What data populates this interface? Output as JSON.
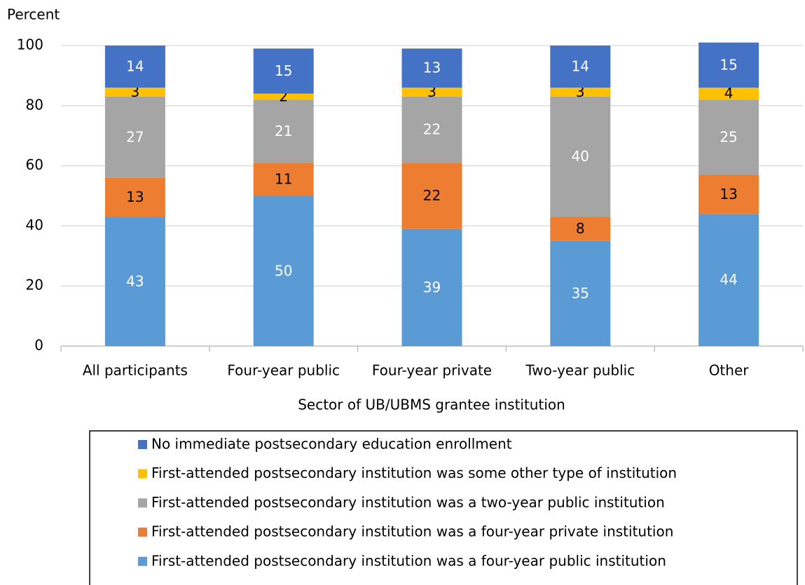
{
  "chart_data": {
    "type": "stacked-bar",
    "y_label": "Percent",
    "x_label": "Sector of UB/UBMS grantee institution",
    "categories": [
      "All participants",
      "Four-year public",
      "Four-year private",
      "Two-year public",
      "Other"
    ],
    "ylim": [
      0,
      100
    ],
    "yticks": [
      0,
      20,
      40,
      60,
      80,
      100
    ],
    "grid": true,
    "series": [
      {
        "name": "First-attended postsecondary institution was a four-year public institution",
        "color": "#5b9bd5",
        "values": [
          43,
          50,
          39,
          35,
          44
        ]
      },
      {
        "name": "First-attended postsecondary institution was a four-year private institution",
        "color": "#ed7d31",
        "values": [
          13,
          11,
          22,
          8,
          13
        ]
      },
      {
        "name": "First-attended postsecondary institution was a two-year public institution",
        "color": "#a5a5a5",
        "values": [
          27,
          21,
          22,
          40,
          25
        ]
      },
      {
        "name": "First-attended postsecondary institution was some other type of institution",
        "color": "#ffc000",
        "values": [
          3,
          2,
          3,
          3,
          4
        ]
      },
      {
        "name": "No immediate postsecondary education enrollment",
        "color": "#4472c4",
        "values": [
          14,
          15,
          13,
          14,
          15
        ]
      }
    ]
  }
}
